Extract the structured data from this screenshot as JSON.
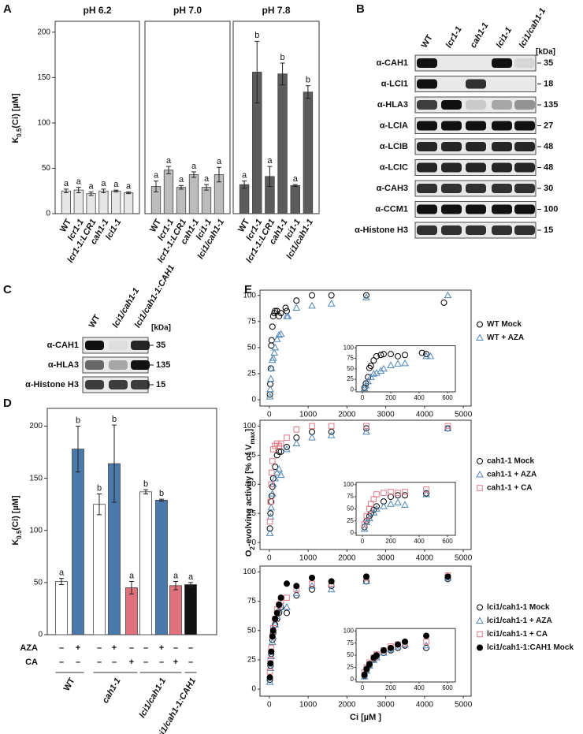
{
  "panel_labels": [
    "A",
    "B",
    "C",
    "D",
    "E"
  ],
  "chart_data": [
    {
      "type": "bar",
      "title": "pH 6.2",
      "ylabel": [
        "K",
        "0.5",
        "(Ci) [µM]"
      ],
      "categories": [
        "WT",
        "lcr1-1",
        "lcr1-1:LCR1",
        "cah1-1",
        "lci1-1",
        null
      ],
      "values": [
        25,
        26,
        22,
        25,
        25,
        23
      ],
      "errors": [
        2,
        3,
        2,
        2,
        1,
        1
      ],
      "annotations": [
        "a",
        "a",
        "a",
        "a",
        "a",
        "a"
      ],
      "color": "#e6e6e6",
      "ylim": [
        0,
        212
      ],
      "yticks": [
        0,
        50,
        100,
        150,
        200
      ]
    },
    {
      "type": "bar",
      "title": "pH 7.0",
      "categories": [
        "WT",
        "lcr1-1",
        "lcr1-1:LCR1",
        "cah1-1",
        "lci1-1",
        "lci1/cah1-1"
      ],
      "values": [
        30,
        48,
        29,
        43,
        29,
        43
      ],
      "errors": [
        6,
        4,
        2,
        3,
        3,
        8
      ],
      "annotations": [
        "a",
        "a",
        "a",
        "a",
        "a",
        "a"
      ],
      "color": "#bcbcbc",
      "ylim": [
        0,
        212
      ]
    },
    {
      "type": "bar",
      "title": "pH 7.8",
      "categories": [
        "WT",
        "lcr1-1",
        "lcr1-1:LCR1",
        "cah1-1",
        "lci1-1",
        "lci1/cah1-1"
      ],
      "values": [
        32,
        156,
        41,
        154,
        31,
        134
      ],
      "errors": [
        4,
        34,
        11,
        12,
        1,
        7
      ],
      "annotations": [
        "a",
        "b",
        "a",
        "b",
        "a",
        "b"
      ],
      "color": "#5c5c5c",
      "ylim": [
        0,
        212
      ]
    },
    {
      "type": "bar",
      "ylabel": [
        "K",
        "0.5",
        "(Ci) [µM]"
      ],
      "groups": [
        "WT",
        "cah1-1",
        "lci1/cah1-1",
        "lci1/cah1-1:CAH1"
      ],
      "values": [
        51,
        178,
        125,
        164,
        45,
        137,
        129,
        47,
        48
      ],
      "errors": [
        3,
        22,
        10,
        37,
        6,
        2,
        1,
        4,
        2
      ],
      "annotations": [
        "a",
        "b",
        "b",
        "b",
        "a",
        "b",
        "b",
        "a",
        "a"
      ],
      "colors": [
        "#ffffff",
        "#4a7aab",
        "#ffffff",
        "#4a7aab",
        "#e0717d",
        "#ffffff",
        "#4a7aab",
        "#e0717d",
        "#111111"
      ],
      "ylim": [
        0,
        217
      ],
      "yticks": [
        0,
        50,
        100,
        150,
        200
      ],
      "treatments": [
        {
          "label": "AZA",
          "color": "#4a7aab",
          "signs": [
            "–",
            "+",
            "–",
            "+",
            "–",
            "–",
            "+",
            "–",
            "–"
          ]
        },
        {
          "label": "CA",
          "color": "#e0717d",
          "signs": [
            "–",
            "–",
            "–",
            "–",
            "+",
            "–",
            "–",
            "+",
            "–"
          ]
        }
      ]
    },
    {
      "type": "scatter",
      "xlim": [
        -240,
        5200
      ],
      "ylim": [
        -6,
        105
      ],
      "xticks": [
        0,
        1000,
        2000,
        3000,
        4000,
        5000
      ],
      "yticks": [
        0,
        25,
        50,
        75,
        100
      ],
      "inset": {
        "xlim": [
          -44,
          655
        ],
        "ylim": [
          -5,
          105
        ],
        "xticks": [
          0,
          200,
          400,
          600
        ],
        "yticks": [
          0,
          25,
          50,
          75,
          100
        ]
      },
      "series": [
        {
          "name": "WT Mock",
          "marker": "circle",
          "color": "#000000",
          "x": [
            15,
            25,
            40,
            50,
            60,
            80,
            100,
            130,
            150,
            200,
            250,
            300,
            420,
            450,
            700,
            1100,
            1600,
            2500,
            4500
          ],
          "values": [
            5,
            15,
            30,
            52,
            57,
            70,
            80,
            83,
            85,
            85,
            80,
            83,
            88,
            85,
            95,
            100,
            100,
            100,
            93
          ]
        },
        {
          "name": "WT + AZA",
          "marker": "triangle",
          "color": "#4f86b8",
          "x": [
            15,
            25,
            40,
            60,
            80,
            100,
            130,
            150,
            200,
            250,
            300,
            450,
            480,
            700,
            1100,
            1600,
            2500,
            4600
          ],
          "values": [
            3,
            10,
            20,
            30,
            38,
            40,
            45,
            50,
            58,
            62,
            63,
            80,
            80,
            88,
            90,
            92,
            98,
            100
          ]
        }
      ]
    },
    {
      "type": "scatter",
      "ylabel": [
        "O",
        "2",
        "-evolving activity [% of V",
        "max",
        "]"
      ],
      "xlim": [
        -240,
        5200
      ],
      "ylim": [
        -6,
        105
      ],
      "xticks": [
        0,
        1000,
        2000,
        3000,
        4000,
        5000
      ],
      "yticks": [
        0,
        25,
        50,
        75,
        100
      ],
      "inset": {
        "xlim": [
          -44,
          655
        ],
        "ylim": [
          -5,
          105
        ],
        "xticks": [
          0,
          200,
          400,
          600
        ],
        "yticks": [
          0,
          25,
          50,
          75,
          100
        ]
      },
      "series": [
        {
          "name": "cah1-1 Mock",
          "marker": "circle",
          "color": "#000000",
          "x": [
            15,
            30,
            50,
            60,
            80,
            100,
            150,
            200,
            250,
            300,
            450,
            700,
            1100,
            1600,
            2500,
            4600
          ],
          "values": [
            12,
            25,
            35,
            40,
            48,
            55,
            65,
            75,
            78,
            78,
            82,
            90,
            95,
            95,
            98,
            98
          ]
        },
        {
          "name": "cah1-1 + AZA",
          "marker": "triangle",
          "color": "#4f86b8",
          "x": [
            15,
            30,
            50,
            80,
            100,
            150,
            200,
            250,
            300,
            450,
            700,
            1100,
            1600,
            2500,
            4600
          ],
          "values": [
            8,
            22,
            30,
            42,
            50,
            55,
            60,
            63,
            58,
            80,
            85,
            90,
            92,
            95,
            98
          ]
        },
        {
          "name": "cah1-1 + CA",
          "marker": "square",
          "color": "#e07a86",
          "x": [
            15,
            30,
            50,
            60,
            80,
            100,
            150,
            200,
            250,
            300,
            450,
            700,
            1100,
            1600,
            2500,
            4600
          ],
          "values": [
            18,
            35,
            50,
            60,
            70,
            80,
            83,
            85,
            83,
            85,
            90,
            97,
            100,
            100,
            100,
            100
          ]
        }
      ]
    },
    {
      "type": "scatter",
      "xlabel": "Ci [µM ]",
      "xlim": [
        -240,
        5200
      ],
      "ylim": [
        -6,
        105
      ],
      "xticks": [
        0,
        1000,
        2000,
        3000,
        4000,
        5000
      ],
      "yticks": [
        0,
        25,
        50,
        75,
        100
      ],
      "inset": {
        "xlim": [
          -44,
          655
        ],
        "ylim": [
          -5,
          105
        ],
        "xticks": [
          0,
          200,
          400,
          600
        ],
        "yticks": [
          0,
          25,
          50,
          75,
          100
        ]
      },
      "series": [
        {
          "name": "lci1/cah1-1 Mock",
          "marker": "circle",
          "color": "#000000",
          "x": [
            15,
            30,
            50,
            80,
            100,
            150,
            200,
            250,
            300,
            450,
            700,
            1100,
            1600,
            2500,
            4600
          ],
          "values": [
            8,
            20,
            30,
            42,
            48,
            55,
            60,
            65,
            70,
            65,
            80,
            85,
            88,
            92,
            94
          ]
        },
        {
          "name": "lci1/cah1-1 + AZA",
          "marker": "triangle",
          "color": "#4f86b8",
          "x": [
            15,
            30,
            50,
            80,
            100,
            150,
            200,
            250,
            300,
            450,
            700,
            1100,
            1600,
            2500,
            4600
          ],
          "values": [
            6,
            18,
            28,
            40,
            45,
            55,
            62,
            68,
            72,
            70,
            82,
            88,
            85,
            92,
            95
          ]
        },
        {
          "name": "lci1/cah1-1 + CA",
          "marker": "square",
          "color": "#e07a86",
          "x": [
            15,
            30,
            50,
            80,
            100,
            150,
            200,
            250,
            300,
            450,
            700,
            1100,
            1600,
            2500,
            4600
          ],
          "values": [
            15,
            25,
            35,
            45,
            52,
            60,
            68,
            72,
            75,
            78,
            85,
            90,
            90,
            95,
            97
          ]
        },
        {
          "name": "lci1/cah1-1:CAH1 Mock",
          "marker": "filled-circle",
          "color": "#000000",
          "x": [
            15,
            30,
            50,
            80,
            100,
            150,
            200,
            250,
            300,
            450,
            700,
            1100,
            1600,
            2500,
            4600
          ],
          "values": [
            10,
            22,
            32,
            45,
            50,
            60,
            65,
            72,
            78,
            90,
            88,
            95,
            92,
            96,
            96
          ]
        }
      ]
    }
  ],
  "blots": [
    {
      "lanes": [
        "WT",
        "lcr1-1",
        "cah1-1",
        "lci1-1",
        "lci1/cah1-1"
      ],
      "unit": "[kDa]",
      "rows": [
        {
          "label": "α-CAH1",
          "kda": 35,
          "bands": [
            1,
            0,
            0,
            1,
            0.08
          ]
        },
        {
          "label": "α-LCI1",
          "kda": 18,
          "bands": [
            1,
            0,
            0.85,
            0,
            0
          ]
        },
        {
          "label": "α-HLA3",
          "kda": 135,
          "bands": [
            0.8,
            1,
            0.15,
            0.3,
            0.4
          ]
        },
        {
          "label": "α-LCIA",
          "kda": 27,
          "bands": [
            1,
            1,
            1,
            1,
            1
          ]
        },
        {
          "label": "α-LCIB",
          "kda": 48,
          "bands": [
            0.9,
            0.9,
            0.9,
            0.9,
            0.9
          ]
        },
        {
          "label": "α-LCIC",
          "kda": 48,
          "bands": [
            0.9,
            0.9,
            0.9,
            0.9,
            0.9
          ]
        },
        {
          "label": "α-CAH3",
          "kda": 30,
          "bands": [
            0.85,
            0.85,
            0.85,
            0.85,
            0.85
          ]
        },
        {
          "label": "α-CCM1",
          "kda": 100,
          "bands": [
            1,
            1,
            1,
            1,
            1
          ]
        },
        {
          "label": "α-Histone H3",
          "kda": 15,
          "bands": [
            0.85,
            0.85,
            0.85,
            0.85,
            0.85
          ]
        }
      ]
    },
    {
      "lanes": [
        "WT",
        "lci1/cah1-1",
        "lci1/cah1-1:CAH1"
      ],
      "unit": "[kDa]",
      "rows": [
        {
          "label": "α-CAH1",
          "kda": 35,
          "bands": [
            1,
            0.05,
            0.9
          ]
        },
        {
          "label": "α-HLA3",
          "kda": 135,
          "bands": [
            0.6,
            0.3,
            1
          ]
        },
        {
          "label": "α-Histone H3",
          "kda": 15,
          "bands": [
            0.8,
            0.8,
            0.8
          ]
        }
      ]
    }
  ]
}
